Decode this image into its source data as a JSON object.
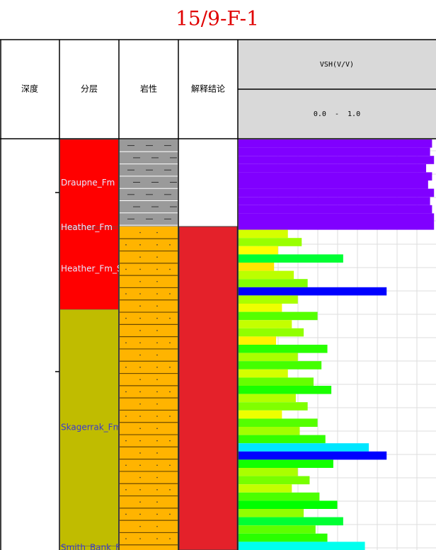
{
  "chart_data": {
    "type": "well-log",
    "title": "15/9-F-1",
    "headers": {
      "depth": "深度",
      "formation": "分层",
      "lithology": "岩性",
      "interpretation": "解释结论"
    },
    "ylim": [
      0,
      100
    ],
    "formations": [
      {
        "name": "Draupne_Fm",
        "top": 0,
        "bottom": 21.2,
        "color": "#ff0000"
      },
      {
        "name": "Heather_Fm",
        "top": 21.2,
        "bottom": 21.7,
        "color": "#ff0000"
      },
      {
        "name": "Heather_Fm_Sa",
        "top": 21.7,
        "bottom": 41.4,
        "color": "#ff0000"
      },
      {
        "name": "Skagerrak_Fm",
        "top": 41.4,
        "bottom": 99,
        "color": "#c0bc00"
      },
      {
        "name": "Smith_Bank_Fm",
        "top": 99,
        "bottom": 100,
        "color": "#c0bc00"
      }
    ],
    "lithology": [
      {
        "top": 0,
        "bottom": 21.2,
        "color": "#9a9a9a"
      },
      {
        "top": 21.2,
        "bottom": 100,
        "color": "#ffb400"
      }
    ],
    "interpretation": [
      {
        "top": 21.2,
        "bottom": 100,
        "color": "#e4212a"
      }
    ],
    "vsh": {
      "name": "VSH(V/V)",
      "range_label": "0.0  -  1.0",
      "xlim": [
        0,
        1
      ],
      "step": 2,
      "depth": [
        0,
        2,
        4,
        6,
        8,
        10,
        12,
        14,
        16,
        18,
        20,
        22,
        24,
        26,
        28,
        30,
        32,
        34,
        36,
        38,
        40,
        42,
        44,
        46,
        48,
        50,
        52,
        54,
        56,
        58,
        60,
        62,
        64,
        66,
        68,
        70,
        72,
        74,
        76,
        78,
        80,
        82,
        84,
        86,
        88,
        90,
        92,
        94,
        96,
        98
      ],
      "values": [
        0.98,
        0.97,
        0.99,
        0.95,
        0.98,
        0.96,
        0.99,
        0.97,
        0.98,
        0.99,
        0.99,
        0.25,
        0.32,
        0.2,
        0.53,
        0.18,
        0.28,
        0.35,
        0.75,
        0.3,
        0.22,
        0.4,
        0.27,
        0.33,
        0.19,
        0.45,
        0.3,
        0.42,
        0.25,
        0.38,
        0.47,
        0.29,
        0.35,
        0.22,
        0.4,
        0.31,
        0.44,
        0.66,
        0.75,
        0.48,
        0.3,
        0.36,
        0.27,
        0.41,
        0.5,
        0.33,
        0.53,
        0.39,
        0.45,
        0.64
      ]
    }
  }
}
